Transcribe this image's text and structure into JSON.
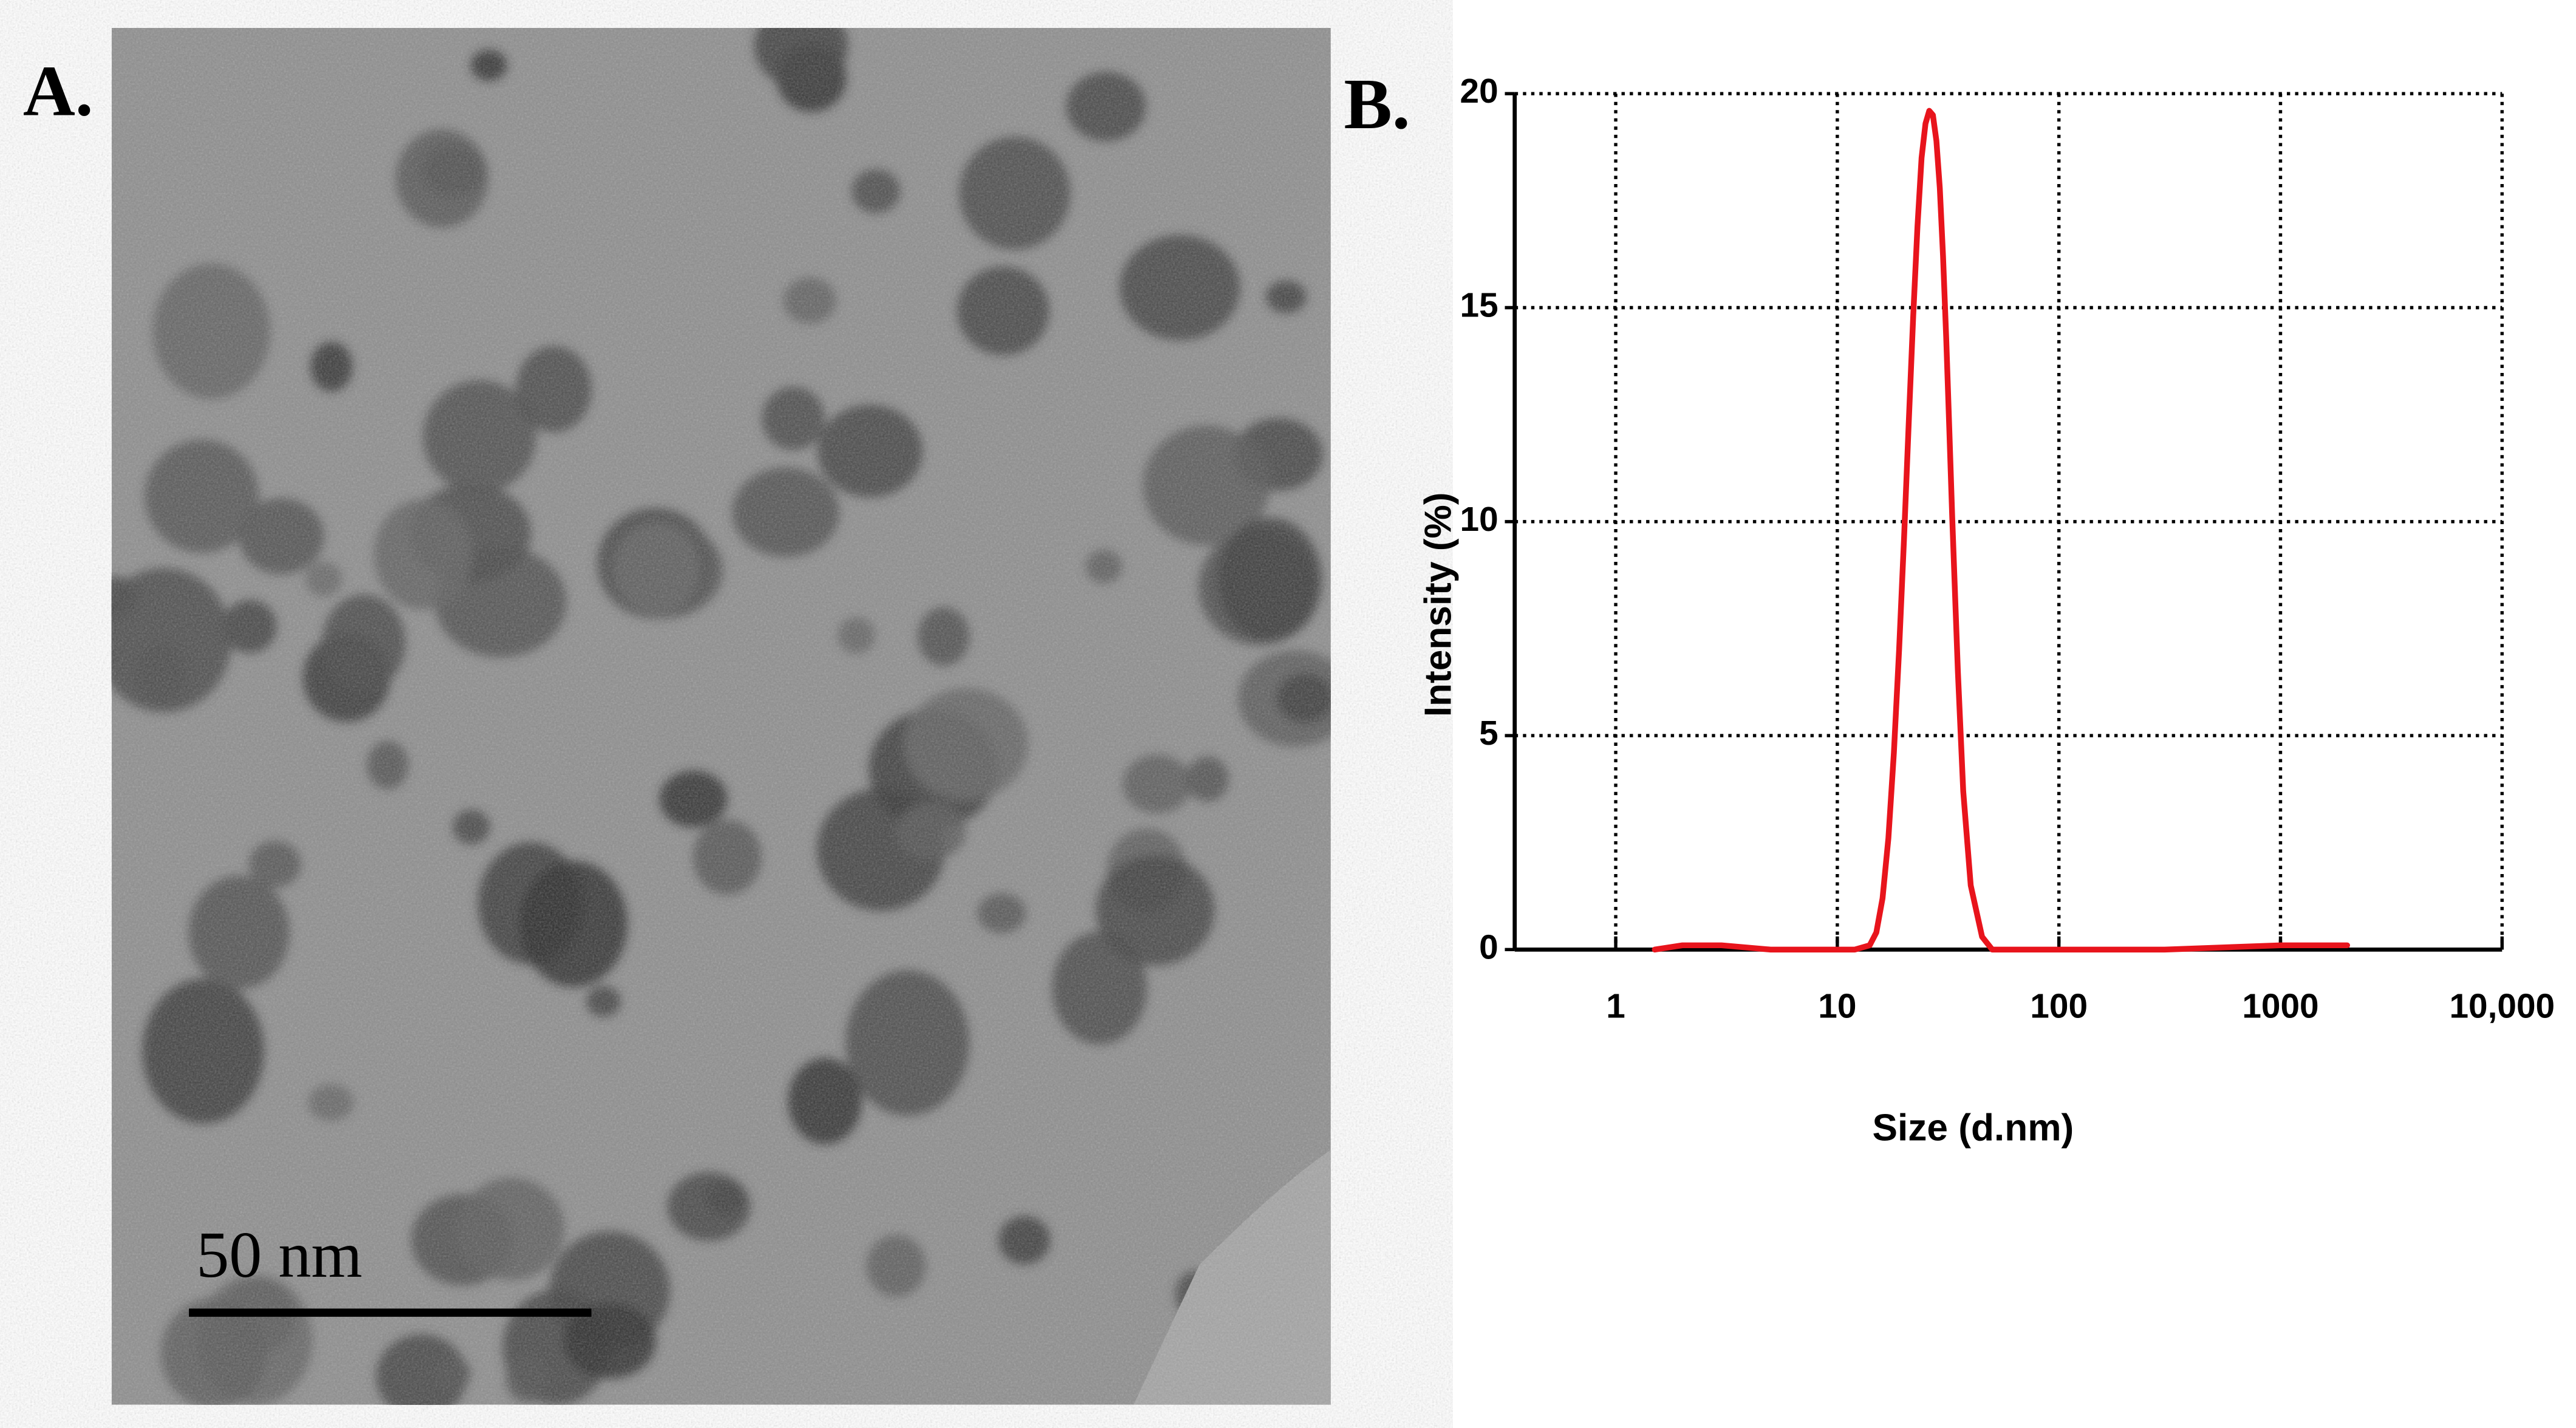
{
  "image": {
    "panel_label": "A.",
    "scale_bar_label": "50 nm"
  },
  "chart_data": {
    "type": "line",
    "panel_label": "B.",
    "x_label": "Size (d.nm)",
    "y_label": "Intensity (%)",
    "x": [
      1.5,
      2,
      3,
      5,
      8,
      12,
      14,
      15,
      16,
      17,
      18,
      19,
      20,
      21,
      22,
      23,
      24,
      25,
      26,
      27,
      28,
      29,
      30,
      31,
      32,
      33,
      35,
      37,
      40,
      45,
      50,
      70,
      100,
      300,
      1000,
      2000
    ],
    "series": [
      {
        "name": "Intensity",
        "color": "#e8141c",
        "values": [
          0,
          0.1,
          0.1,
          0,
          0,
          0,
          0.1,
          0.4,
          1.2,
          2.6,
          4.6,
          7,
          9.6,
          12.3,
          14.8,
          16.9,
          18.5,
          19.3,
          19.6,
          19.5,
          18.9,
          17.8,
          16.2,
          14.3,
          12.2,
          10.1,
          6.5,
          3.7,
          1.5,
          0.3,
          0,
          0,
          0,
          0,
          0.1,
          0.1
        ]
      }
    ],
    "xscale": "log",
    "xlim": [
      0.35,
      10000
    ],
    "xticks": [
      1,
      10,
      100,
      1000,
      {
        "value": 10000,
        "label": "10,000"
      }
    ],
    "ylim": [
      0,
      20
    ],
    "yticks": [
      0,
      5,
      10,
      15,
      20
    ],
    "grid": true
  }
}
